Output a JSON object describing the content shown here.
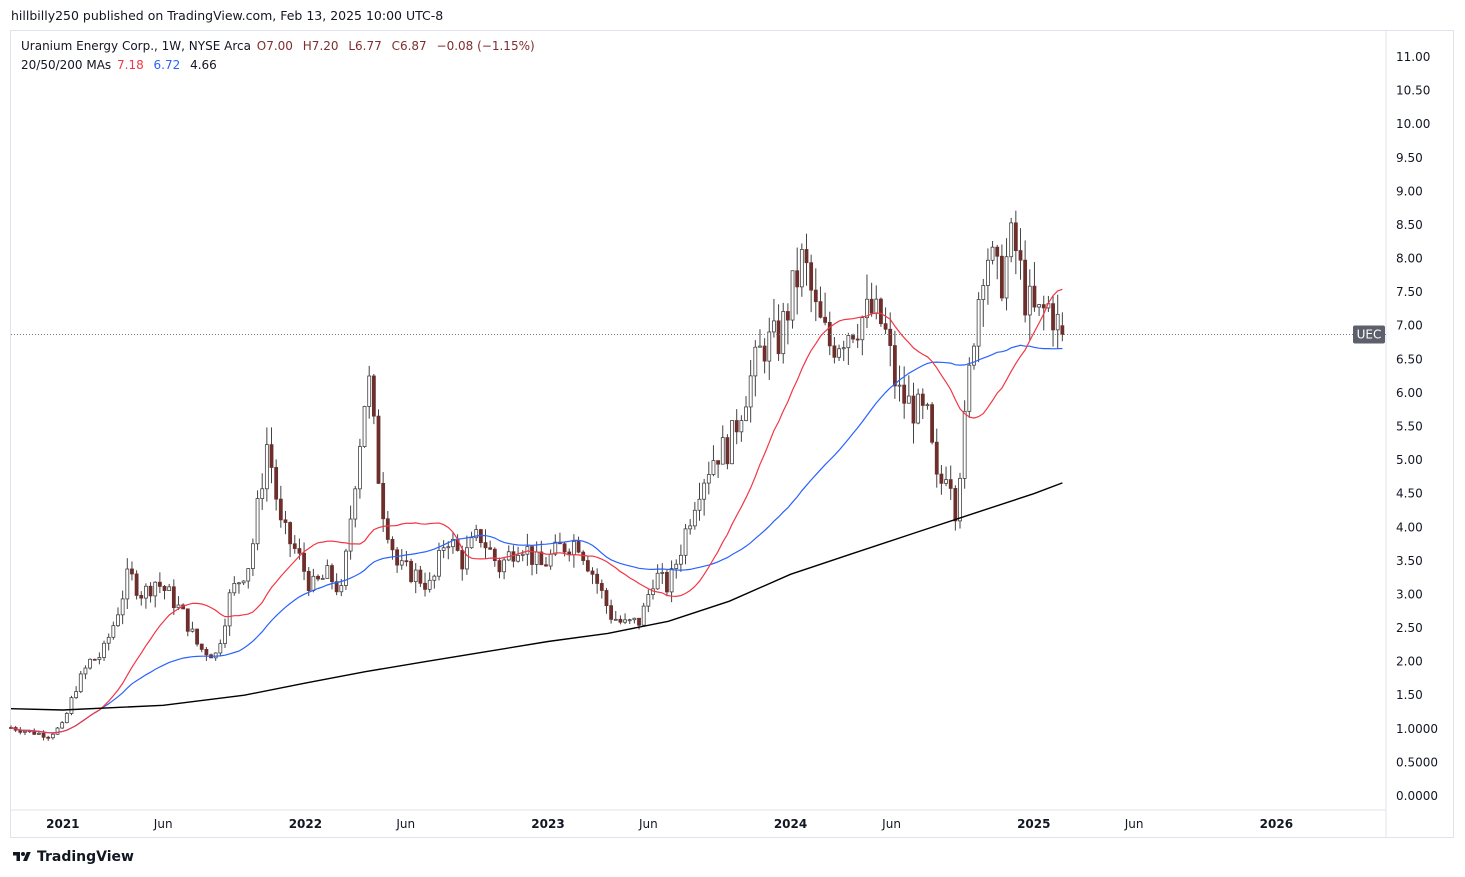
{
  "header": {
    "publisher_text": "hillbilly250 published on TradingView.com, Feb 13, 2025 10:00 UTC-8"
  },
  "legend": {
    "symbol_line": "Uranium Energy Corp., 1W, NYSE Arca",
    "open": "O7.00",
    "high": "H7.20",
    "low": "L6.77",
    "close": "C6.87",
    "change": "−0.08 (−1.15%)",
    "ma_label": "20/50/200 MAs",
    "ma20": "7.18",
    "ma50": "6.72",
    "ma200": "4.66"
  },
  "footer": {
    "brand": "TradingView",
    "logo_icon": "tradingview-logo-icon"
  },
  "colors": {
    "up": "#ffffff",
    "down": "#6d2f2c",
    "wick": "#424242",
    "ma20": "#f23645",
    "ma50": "#2962ff",
    "ma200": "#000000",
    "grid": "#e0e3eb",
    "text": "#131722",
    "price_tag_bg": "#5d606b"
  },
  "chart_data": {
    "type": "candlestick",
    "symbol": "UEC",
    "interval": "1W",
    "current_price": 6.87,
    "ylim": [
      0,
      11.2
    ],
    "y_ticks": [
      "11.00",
      "10.50",
      "10.00",
      "9.50",
      "9.00",
      "8.50",
      "8.00",
      "7.50",
      "7.00",
      "6.50",
      "6.00",
      "5.50",
      "5.00",
      "4.50",
      "4.00",
      "3.50",
      "3.00",
      "2.50",
      "2.00",
      "1.50",
      "1.0000",
      "0.5000",
      "0.0000"
    ],
    "y_tick_values": [
      11,
      10.5,
      10,
      9.5,
      9,
      8.5,
      8,
      7.5,
      7,
      6.5,
      6,
      5.5,
      5,
      4.5,
      4,
      3.5,
      3,
      2.5,
      2,
      1.5,
      1,
      0.5,
      0
    ],
    "x_range": [
      "2020-10-15",
      "2026-06-15"
    ],
    "x_ticks": [
      {
        "label": "2021",
        "date": "2021-01-01",
        "bold": true
      },
      {
        "label": "Jun",
        "date": "2021-06-01",
        "bold": false
      },
      {
        "label": "2022",
        "date": "2022-01-01",
        "bold": true
      },
      {
        "label": "Jun",
        "date": "2022-06-01",
        "bold": false
      },
      {
        "label": "2023",
        "date": "2023-01-01",
        "bold": true
      },
      {
        "label": "Jun",
        "date": "2023-06-01",
        "bold": false
      },
      {
        "label": "2024",
        "date": "2024-01-01",
        "bold": true
      },
      {
        "label": "Jun",
        "date": "2024-06-01",
        "bold": false
      },
      {
        "label": "2025",
        "date": "2025-01-01",
        "bold": true
      },
      {
        "label": "Jun",
        "date": "2025-06-01",
        "bold": false
      },
      {
        "label": "2026",
        "date": "2026-01-01",
        "bold": true
      }
    ],
    "ma200": [
      {
        "date": "2020-10-15",
        "v": 1.3
      },
      {
        "date": "2021-01-01",
        "v": 1.28
      },
      {
        "date": "2021-06-01",
        "v": 1.35
      },
      {
        "date": "2021-10-01",
        "v": 1.5
      },
      {
        "date": "2022-01-01",
        "v": 1.68
      },
      {
        "date": "2022-04-01",
        "v": 1.85
      },
      {
        "date": "2022-07-01",
        "v": 2.0
      },
      {
        "date": "2022-10-01",
        "v": 2.15
      },
      {
        "date": "2023-01-01",
        "v": 2.3
      },
      {
        "date": "2023-04-01",
        "v": 2.42
      },
      {
        "date": "2023-07-01",
        "v": 2.6
      },
      {
        "date": "2023-10-01",
        "v": 2.9
      },
      {
        "date": "2024-01-01",
        "v": 3.3
      },
      {
        "date": "2024-04-01",
        "v": 3.6
      },
      {
        "date": "2024-07-01",
        "v": 3.9
      },
      {
        "date": "2024-10-01",
        "v": 4.2
      },
      {
        "date": "2025-01-01",
        "v": 4.5
      },
      {
        "date": "2025-02-13",
        "v": 4.66
      }
    ],
    "price_path": [
      [
        "2020-10-15",
        1.02
      ],
      [
        "2020-11-15",
        0.95
      ],
      [
        "2020-12-10",
        0.9
      ],
      [
        "2021-01-01",
        1.05
      ],
      [
        "2021-01-20",
        1.6
      ],
      [
        "2021-02-10",
        2.0
      ],
      [
        "2021-03-01",
        2.1
      ],
      [
        "2021-03-20",
        2.6
      ],
      [
        "2021-04-10",
        3.3
      ],
      [
        "2021-05-01",
        3.0
      ],
      [
        "2021-05-20",
        3.2
      ],
      [
        "2021-06-10",
        3.0
      ],
      [
        "2021-07-01",
        2.7
      ],
      [
        "2021-07-25",
        2.2
      ],
      [
        "2021-08-20",
        2.1
      ],
      [
        "2021-09-10",
        3.0
      ],
      [
        "2021-10-10",
        3.5
      ],
      [
        "2021-11-05",
        5.3
      ],
      [
        "2021-11-25",
        4.0
      ],
      [
        "2021-12-20",
        3.6
      ],
      [
        "2022-01-10",
        3.1
      ],
      [
        "2022-02-05",
        3.3
      ],
      [
        "2022-02-25",
        3.0
      ],
      [
        "2022-03-15",
        4.6
      ],
      [
        "2022-04-05",
        6.3
      ],
      [
        "2022-04-25",
        4.4
      ],
      [
        "2022-05-20",
        3.4
      ],
      [
        "2022-06-15",
        3.3
      ],
      [
        "2022-07-10",
        3.1
      ],
      [
        "2022-08-01",
        3.9
      ],
      [
        "2022-08-25",
        3.5
      ],
      [
        "2022-09-20",
        3.9
      ],
      [
        "2022-10-20",
        3.4
      ],
      [
        "2022-11-20",
        3.8
      ],
      [
        "2022-12-20",
        3.4
      ],
      [
        "2023-01-20",
        3.7
      ],
      [
        "2023-02-15",
        3.8
      ],
      [
        "2023-03-15",
        3.2
      ],
      [
        "2023-04-05",
        2.7
      ],
      [
        "2023-04-25",
        2.55
      ],
      [
        "2023-05-20",
        2.6
      ],
      [
        "2023-06-10",
        3.3
      ],
      [
        "2023-07-01",
        3.1
      ],
      [
        "2023-07-20",
        3.7
      ],
      [
        "2023-08-15",
        4.6
      ],
      [
        "2023-09-10",
        5.1
      ],
      [
        "2023-10-01",
        5.2
      ],
      [
        "2023-10-25",
        6.0
      ],
      [
        "2023-11-20",
        6.7
      ],
      [
        "2023-12-15",
        6.8
      ],
      [
        "2024-01-01",
        7.4
      ],
      [
        "2024-01-20",
        8.0
      ],
      [
        "2024-02-10",
        7.1
      ],
      [
        "2024-03-01",
        6.7
      ],
      [
        "2024-04-01",
        7.0
      ],
      [
        "2024-05-01",
        7.2
      ],
      [
        "2024-05-20",
        7.0
      ],
      [
        "2024-06-10",
        6.0
      ],
      [
        "2024-07-01",
        5.8
      ],
      [
        "2024-07-25",
        5.6
      ],
      [
        "2024-08-10",
        4.5
      ],
      [
        "2024-08-25",
        5.0
      ],
      [
        "2024-09-05",
        4.3
      ],
      [
        "2024-09-20",
        5.6
      ],
      [
        "2024-10-01",
        6.8
      ],
      [
        "2024-10-20",
        8.2
      ],
      [
        "2024-11-10",
        7.6
      ],
      [
        "2024-12-01",
        8.3
      ],
      [
        "2024-12-20",
        7.4
      ],
      [
        "2025-01-05",
        7.1
      ],
      [
        "2025-01-25",
        7.3
      ],
      [
        "2025-02-13",
        6.87
      ]
    ]
  }
}
